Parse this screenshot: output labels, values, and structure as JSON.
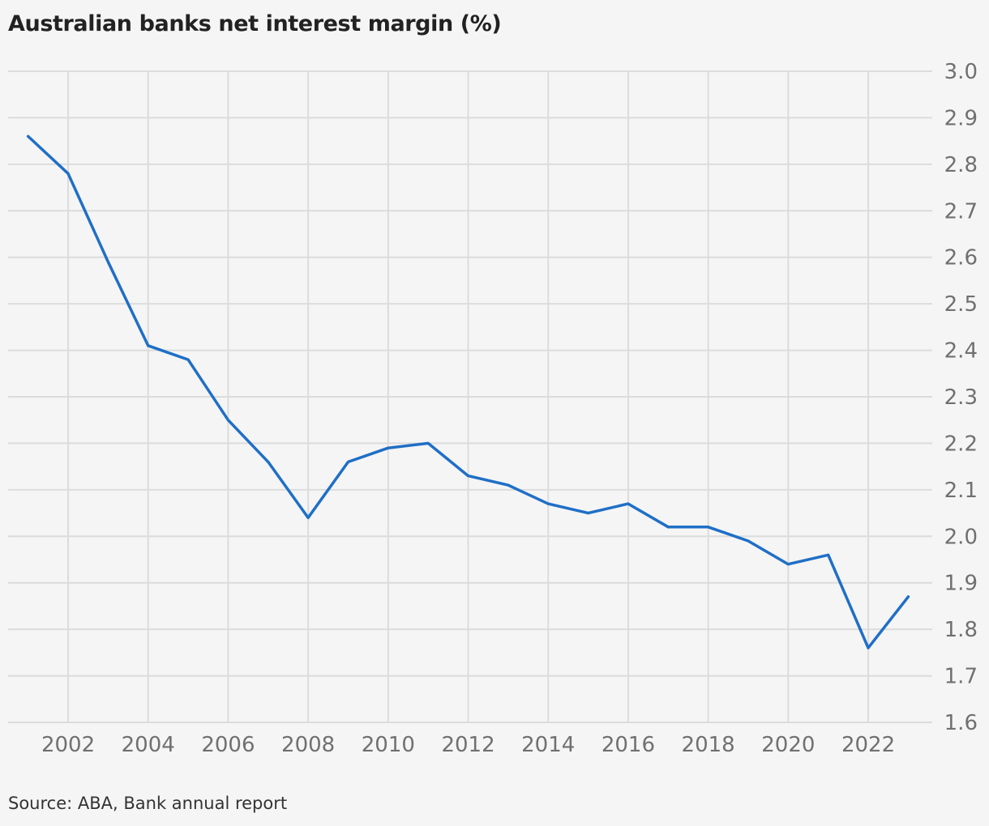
{
  "chart_data": {
    "type": "line",
    "title": "Australian banks net interest margin (%)",
    "source": "Source: ABA, Bank annual report",
    "x": [
      2001,
      2002,
      2003,
      2004,
      2005,
      2006,
      2007,
      2008,
      2009,
      2010,
      2011,
      2012,
      2013,
      2014,
      2015,
      2016,
      2017,
      2018,
      2019,
      2020,
      2021,
      2022,
      2023
    ],
    "series": [
      {
        "values": [
          2.86,
          2.78,
          2.59,
          2.41,
          2.38,
          2.25,
          2.16,
          2.04,
          2.16,
          2.19,
          2.2,
          2.13,
          2.11,
          2.07,
          2.05,
          2.07,
          2.02,
          2.02,
          1.99,
          1.94,
          1.96,
          1.76,
          1.87
        ],
        "color": "#1f6fc6"
      }
    ],
    "xlim": [
      2000.5,
      2023.6
    ],
    "ylim": [
      1.6,
      3.0
    ],
    "xticks": [
      "2002",
      "2004",
      "2006",
      "2008",
      "2010",
      "2012",
      "2014",
      "2016",
      "2018",
      "2020",
      "2022"
    ],
    "yticks": [
      "1.6",
      "1.7",
      "1.8",
      "1.9",
      "2.0",
      "2.1",
      "2.2",
      "2.3",
      "2.4",
      "2.5",
      "2.6",
      "2.7",
      "2.8",
      "2.9",
      "3.0"
    ],
    "grid": true,
    "y_axis_position": "right",
    "legend": "none"
  }
}
